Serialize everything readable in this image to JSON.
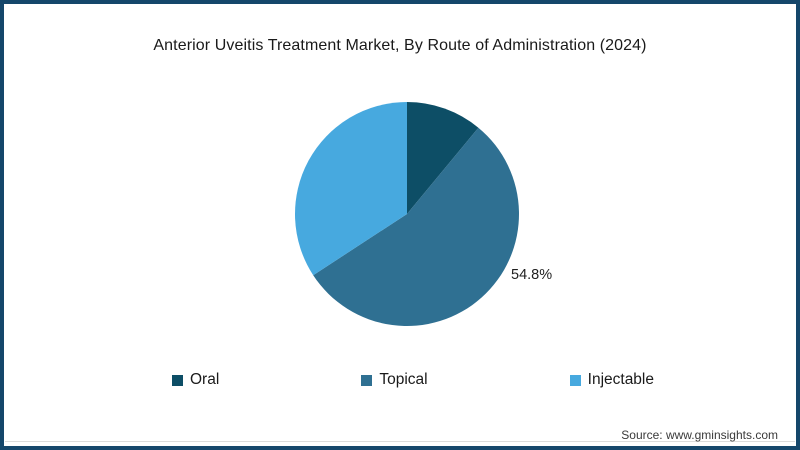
{
  "frame": {
    "border_color": "#15476b",
    "background_color": "#ffffff",
    "divider_color": "#dcdcdc"
  },
  "title": "Anterior Uveitis Treatment Market, By Route of Administration (2024)",
  "source": "Source: www.gminsights.com",
  "chart_data": {
    "type": "pie",
    "title": "Anterior Uveitis Treatment Market, By Route of Administration (2024)",
    "start_angle_deg": 0,
    "direction": "clockwise",
    "legend_position": "bottom",
    "slices": [
      {
        "label": "Oral",
        "value": 11.0,
        "color": "#0d4e66",
        "data_label": ""
      },
      {
        "label": "Topical",
        "value": 54.8,
        "color": "#2f7092",
        "data_label": "54.8%"
      },
      {
        "label": "Injectable",
        "value": 34.2,
        "color": "#47a9df",
        "data_label": ""
      }
    ],
    "notes": "Only the Topical slice shows a visible data label (54.8%); other slice values estimated from arc angles."
  }
}
